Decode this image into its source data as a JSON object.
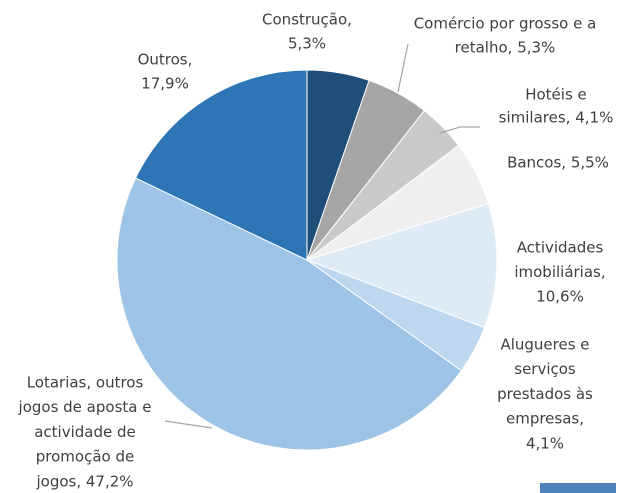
{
  "chart_data": {
    "type": "pie",
    "labels": [
      [
        "Construção,",
        "5,3%"
      ],
      [
        "Comércio por grosso e a",
        "retalho,  5,3%"
      ],
      [
        "Hotéis e",
        "similares,  4,1%"
      ],
      [
        "Bancos, 5,5%"
      ],
      [
        "Actividades",
        "imobiliárias,",
        "10,6%"
      ],
      [
        "Alugueres e",
        "serviços",
        "prestados às",
        "empresas,",
        "4,1%"
      ],
      [
        "Lotarias, outros",
        "jogos de aposta e",
        "actividade de",
        "promoção de",
        "jogos, 47,2%"
      ],
      [
        "Outros,",
        "17,9%"
      ]
    ],
    "values": [
      5.3,
      5.3,
      4.1,
      5.5,
      10.6,
      4.1,
      47.2,
      17.9
    ],
    "colors": [
      "#1f4e79",
      "#a6a6a6",
      "#c9c9c9",
      "#efefef",
      "#deebf7",
      "#bdd7ee",
      "#9dc3e6",
      "#2e75b6"
    ]
  }
}
